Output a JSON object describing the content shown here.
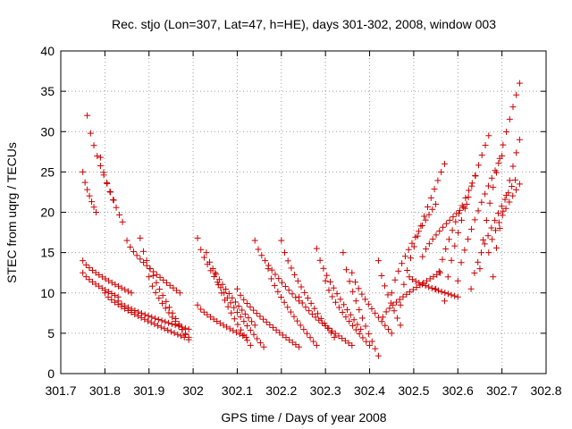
{
  "chart_data": {
    "type": "scatter",
    "title": "Rec. stjo (Lon=307, Lat=47, h=HE), days 301-302, 2008, window 003",
    "xlabel": "GPS time / Days of year 2008",
    "ylabel": "STEC from uqrg / TECUs",
    "xlim": [
      301.7,
      302.8
    ],
    "ylim": [
      0,
      40
    ],
    "xticks": [
      "301.7",
      "301.8",
      "301.9",
      "302",
      "302.1",
      "302.2",
      "302.3",
      "302.4",
      "302.5",
      "302.6",
      "302.7",
      "302.8"
    ],
    "yticks": [
      "0",
      "5",
      "10",
      "15",
      "20",
      "25",
      "30",
      "35",
      "40"
    ],
    "grid": true,
    "marker": "+",
    "color": "#cc0000",
    "arcs": [
      {
        "x0": 301.75,
        "x1": 301.83,
        "y0": 12.5,
        "y1": 9.5
      },
      {
        "x0": 301.75,
        "x1": 301.86,
        "y0": 14.0,
        "y1": 10.0
      },
      {
        "x0": 301.75,
        "x1": 301.78,
        "y0": 25.0,
        "y1": 20.0
      },
      {
        "x0": 301.76,
        "x1": 301.82,
        "y0": 32.0,
        "y1": 21.5
      },
      {
        "x0": 301.79,
        "x1": 301.84,
        "y0": 26.8,
        "y1": 18.8
      },
      {
        "x0": 301.8,
        "x1": 301.98,
        "y0": 10.0,
        "y1": 4.5
      },
      {
        "x0": 301.83,
        "x1": 301.99,
        "y0": 9.0,
        "y1": 5.5
      },
      {
        "x0": 301.85,
        "x1": 301.97,
        "y0": 16.5,
        "y1": 10.0
      },
      {
        "x0": 301.88,
        "x1": 301.99,
        "y0": 16.8,
        "y1": 4.2
      },
      {
        "x0": 301.9,
        "x1": 301.99,
        "y0": 12.0,
        "y1": 4.5
      },
      {
        "x0": 302.01,
        "x1": 302.16,
        "y0": 16.8,
        "y1": 3.3
      },
      {
        "x0": 302.01,
        "x1": 302.12,
        "y0": 8.5,
        "y1": 4.5
      },
      {
        "x0": 302.03,
        "x1": 302.14,
        "y0": 15.0,
        "y1": 6.0
      },
      {
        "x0": 302.05,
        "x1": 302.13,
        "y0": 12.5,
        "y1": 3.5
      },
      {
        "x0": 302.1,
        "x1": 302.24,
        "y0": 10.5,
        "y1": 3.3
      },
      {
        "x0": 302.14,
        "x1": 302.24,
        "y0": 16.5,
        "y1": 9.0
      },
      {
        "x0": 302.17,
        "x1": 302.28,
        "y0": 13.0,
        "y1": 3.5
      },
      {
        "x0": 302.2,
        "x1": 302.32,
        "y0": 16.5,
        "y1": 4.5
      },
      {
        "x0": 302.24,
        "x1": 302.36,
        "y0": 9.5,
        "y1": 3.5
      },
      {
        "x0": 302.28,
        "x1": 302.38,
        "y0": 15.5,
        "y1": 5.5
      },
      {
        "x0": 302.3,
        "x1": 302.4,
        "y0": 11.5,
        "y1": 3.5
      },
      {
        "x0": 302.34,
        "x1": 302.42,
        "y0": 15.0,
        "y1": 2.2
      },
      {
        "x0": 302.36,
        "x1": 302.45,
        "y0": 12.5,
        "y1": 5.0
      },
      {
        "x0": 302.42,
        "x1": 302.47,
        "y0": 14.0,
        "y1": 6.0
      },
      {
        "x0": 302.43,
        "x1": 302.56,
        "y0": 7.0,
        "y1": 12.5
      },
      {
        "x0": 302.45,
        "x1": 302.55,
        "y0": 10.0,
        "y1": 21.0
      },
      {
        "x0": 302.47,
        "x1": 302.57,
        "y0": 8.5,
        "y1": 26.0
      },
      {
        "x0": 302.49,
        "x1": 302.6,
        "y0": 12.0,
        "y1": 9.5
      },
      {
        "x0": 302.52,
        "x1": 302.62,
        "y0": 14.5,
        "y1": 21.0
      },
      {
        "x0": 302.55,
        "x1": 302.64,
        "y0": 10.5,
        "y1": 24.5
      },
      {
        "x0": 302.57,
        "x1": 302.67,
        "y0": 9.0,
        "y1": 29.5
      },
      {
        "x0": 302.6,
        "x1": 302.7,
        "y0": 11.5,
        "y1": 27.0
      },
      {
        "x0": 302.63,
        "x1": 302.73,
        "y0": 10.5,
        "y1": 24.0
      },
      {
        "x0": 302.65,
        "x1": 302.74,
        "y0": 13.0,
        "y1": 36.0
      },
      {
        "x0": 302.67,
        "x1": 302.74,
        "y0": 15.0,
        "y1": 23.5
      },
      {
        "x0": 302.68,
        "x1": 302.74,
        "y0": 12.0,
        "y1": 29.0
      }
    ]
  }
}
